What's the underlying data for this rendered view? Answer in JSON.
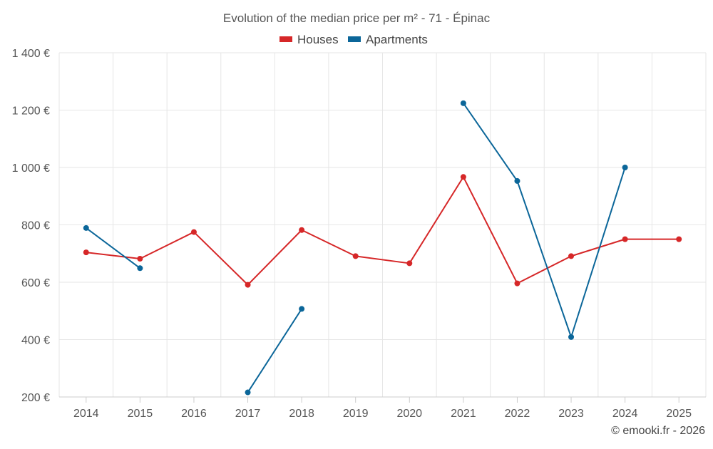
{
  "chart_data": {
    "type": "line",
    "title": "Evolution of the median price per m² - 71 - Épinac",
    "x": [
      "2014",
      "2015",
      "2016",
      "2017",
      "2018",
      "2019",
      "2020",
      "2021",
      "2022",
      "2023",
      "2024",
      "2025"
    ],
    "series": [
      {
        "name": "Houses",
        "color": "#d62728",
        "values": [
          704,
          682,
          775,
          591,
          782,
          691,
          666,
          967,
          596,
          691,
          750,
          750
        ]
      },
      {
        "name": "Apartments",
        "color": "#0b6699",
        "values": [
          789,
          649,
          null,
          216,
          507,
          null,
          null,
          1224,
          953,
          409,
          1000,
          null
        ]
      }
    ],
    "ylim": [
      200,
      1400
    ],
    "y_ticks": [
      200,
      400,
      600,
      800,
      1000,
      1200,
      1400
    ],
    "y_tick_labels": [
      "200 €",
      "400 €",
      "600 €",
      "800 €",
      "1 000 €",
      "1 200 €",
      "1 400 €"
    ],
    "xlabel": "",
    "ylabel": "",
    "grid": true,
    "legend_position": "top-center"
  },
  "footer": {
    "credit": "© emooki.fr - 2026"
  }
}
